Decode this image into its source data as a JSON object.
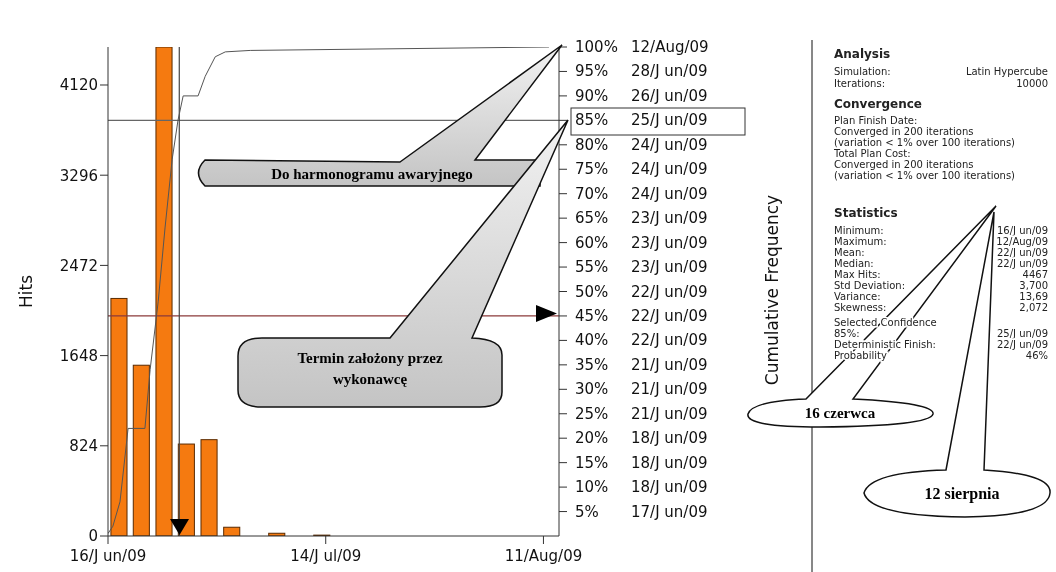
{
  "chart_data": {
    "type": "bar",
    "ylabel": "Hits",
    "xlim": [
      "2009-06-16",
      "2009-08-13"
    ],
    "xticks": [
      {
        "value": "2009-06-16",
        "label": "16/J un/09"
      },
      {
        "value": "2009-07-14",
        "label": "14/J ul/09"
      },
      {
        "value": "2009-08-11",
        "label": "11/Aug/09"
      }
    ],
    "ylim": [
      0,
      4467
    ],
    "yticks": [
      0,
      824,
      1648,
      2472,
      3296,
      4120
    ],
    "y2lim": [
      0,
      100
    ],
    "y2ticks": [
      {
        "value": 5,
        "label": "5%"
      },
      {
        "value": 10,
        "label": "10%"
      },
      {
        "value": 15,
        "label": "15%"
      },
      {
        "value": 20,
        "label": "20%"
      },
      {
        "value": 25,
        "label": "25%"
      },
      {
        "value": 30,
        "label": "30%"
      },
      {
        "value": 35,
        "label": "35%"
      },
      {
        "value": 40,
        "label": "40%"
      },
      {
        "value": 45,
        "label": "45%"
      },
      {
        "value": 50,
        "label": "50%"
      },
      {
        "value": 55,
        "label": "55%"
      },
      {
        "value": 60,
        "label": "60%"
      },
      {
        "value": 65,
        "label": "65%"
      },
      {
        "value": 70,
        "label": "70%"
      },
      {
        "value": 75,
        "label": "75%"
      },
      {
        "value": 80,
        "label": "80%"
      },
      {
        "value": 85,
        "label": "85%"
      },
      {
        "value": 90,
        "label": "90%"
      },
      {
        "value": 95,
        "label": "95%"
      },
      {
        "value": 100,
        "label": "100%"
      }
    ],
    "series": [
      {
        "color": "#f57a10",
        "x": [
          "2009-06-17T10:00",
          "2009-06-20T07:00",
          "2009-06-23T05:00",
          "2009-06-26T02:00",
          "2009-06-29T00:00",
          "2009-07-01T22:00",
          "2009-07-07T17:00",
          "2009-07-13T12:00"
        ],
        "values": [
          2170,
          1560,
          4467,
          840,
          880,
          80,
          25,
          8
        ]
      },
      {
        "type": "line",
        "axis": "y2",
        "color": "#555555",
        "x": [
          "2009-06-16T00:00",
          "2009-06-16T15:00",
          "2009-06-17T13:00",
          "2009-06-18T14:00",
          "2009-06-20T18:00",
          "2009-06-21T10:00",
          "2009-06-22T11:00",
          "2009-06-23T08:00",
          "2009-06-24T06:00",
          "2009-06-25T00:00",
          "2009-06-25T16:00",
          "2009-06-27T14:00",
          "2009-06-28T12:00",
          "2009-06-29T19:00",
          "2009-07-01T02:00",
          "2009-07-04T07:00",
          "2009-08-11T17:00"
        ],
        "values": [
          0.5,
          2,
          7,
          22,
          22,
          34,
          48,
          63,
          77,
          85,
          90,
          90,
          94,
          98,
          99,
          99.3,
          100
        ]
      }
    ],
    "ref_lines": [
      {
        "axis": "y2",
        "value": 85,
        "color": "#666666"
      },
      {
        "axis": "y2",
        "value": 45,
        "color": "#8b3a3a"
      },
      {
        "axis": "x",
        "value": "2009-06-25T04:00",
        "color": "#444444"
      }
    ],
    "annotations": [
      "Do harmonogramu awaryjnego",
      "Termin założony przez wykonawcę",
      "16 czerwca",
      "12 sierpnia",
      "Analysis",
      "Simulation:",
      "Latin Hypercube",
      "Iterations:",
      "10000",
      "Convergence",
      "Plan Finish Date:",
      "Converged in 200 iterations",
      "(variation < 1% over 100 iterations)",
      "Total Plan Cost:",
      "Converged in 200 iterations",
      "(variation < 1% over 100 iterations)",
      "Statistics",
      "Minimum:",
      "16/J un/09",
      "Maximum:",
      "12/Aug/09",
      "Mean:",
      "22/J un/09",
      "Median:",
      "22/J un/09",
      "Max Hits:",
      "4467",
      "Std Deviation:",
      "3,700",
      "Variance:",
      "13,69",
      "Skewness:",
      "2,072",
      "Selected Confidence",
      "85%:",
      "25/J un/09",
      "Deterministic Finish:",
      "22/J un/09",
      "Probability",
      "46%",
      "17/J un/09",
      "18/J un/09",
      "18/J un/09",
      "18/J un/09",
      "21/J un/09",
      "21/J un/09",
      "21/J un/09",
      "22/J un/09",
      "22/J un/09",
      "22/J un/09",
      "23/J un/09",
      "23/J un/09",
      "23/J un/09",
      "24/J un/09",
      "24/J un/09",
      "24/J un/09",
      "25/J un/09",
      "26/J un/09",
      "28/J un/09",
      "12/Aug/09",
      "Cumulative Frequency"
    ]
  }
}
